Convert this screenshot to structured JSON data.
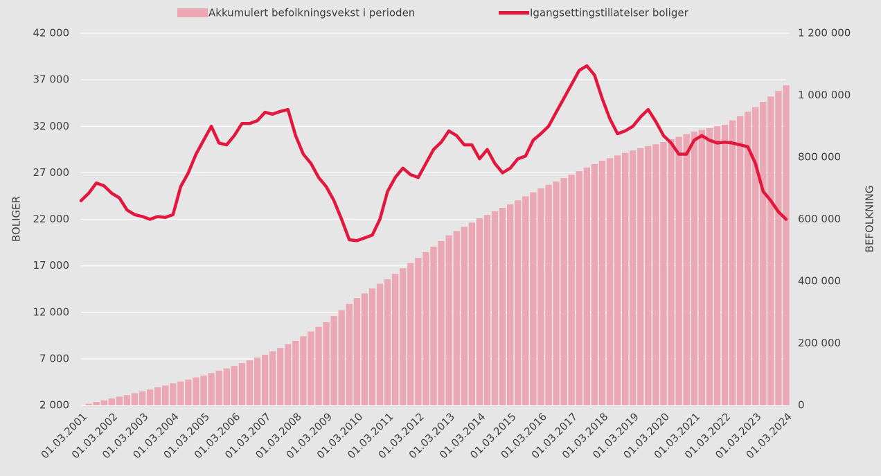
{
  "chart_data": {
    "type": "combo",
    "y_label": "BOLIGER",
    "y2_label": "BEFOLKNING",
    "categories": [
      "01.03.2001",
      null,
      null,
      null,
      "01.03.2002",
      null,
      null,
      null,
      "01.03.2003",
      null,
      null,
      null,
      "01.03.2004",
      null,
      null,
      null,
      "01.03.2005",
      null,
      null,
      null,
      "01.03.2006",
      null,
      null,
      null,
      "01.03.2007",
      null,
      null,
      null,
      "01.03.2008",
      null,
      null,
      null,
      "01.03.2009",
      null,
      null,
      null,
      "01.03.2010",
      null,
      null,
      null,
      "01.03.2011",
      null,
      null,
      null,
      "01.03.2012",
      null,
      null,
      null,
      "01.03.2013",
      null,
      null,
      null,
      "01.03.2014",
      null,
      null,
      null,
      "01.03.2015",
      null,
      null,
      null,
      "01.03.2016",
      null,
      null,
      null,
      "01.03.2017",
      null,
      null,
      null,
      "01.03.2018",
      null,
      null,
      null,
      "01.03.2019",
      null,
      null,
      null,
      "01.03.2020",
      null,
      null,
      null,
      "01.03.2021",
      null,
      null,
      null,
      "01.03.2022",
      null,
      null,
      null,
      "01.03.2023",
      null,
      null,
      null,
      "01.03.2024"
    ],
    "series": [
      {
        "name": "Akkumulert befolkningsvekst i perioden",
        "type": "bar",
        "axis": "y2",
        "color": "#eba7b3",
        "values": [
          0,
          5000,
          11000,
          16000,
          22000,
          28000,
          33000,
          39000,
          45000,
          51000,
          58000,
          64000,
          71000,
          77000,
          83000,
          90000,
          96000,
          104000,
          112000,
          119000,
          127000,
          136000,
          145000,
          154000,
          163000,
          174000,
          185000,
          197000,
          208000,
          223000,
          238000,
          253000,
          268000,
          288000,
          307000,
          327000,
          346000,
          361000,
          377000,
          392000,
          407000,
          424000,
          442000,
          459000,
          476000,
          494000,
          512000,
          530000,
          548000,
          562000,
          576000,
          589000,
          603000,
          614000,
          626000,
          637000,
          648000,
          661000,
          674000,
          687000,
          700000,
          711000,
          722000,
          733000,
          744000,
          755000,
          767000,
          778000,
          789000,
          797000,
          806000,
          814000,
          822000,
          829000,
          836000,
          842000,
          849000,
          858000,
          866000,
          875000,
          883000,
          889000,
          894000,
          900000,
          905000,
          919000,
          933000,
          947000,
          961000,
          979000,
          996000,
          1014000,
          1032000
        ]
      },
      {
        "name": "Igangsettingstillatelser boliger",
        "type": "line",
        "color": "#e3173e",
        "values": [
          24000,
          24800,
          25900,
          25600,
          24800,
          24300,
          23000,
          22500,
          22300,
          22000,
          22300,
          22200,
          22500,
          25500,
          27000,
          29000,
          30500,
          32000,
          30200,
          30000,
          31000,
          32300,
          32300,
          32600,
          33500,
          33300,
          33600,
          33800,
          31000,
          29000,
          28000,
          26500,
          25500,
          24000,
          22000,
          19800,
          19700,
          20000,
          20300,
          22000,
          25000,
          26500,
          27500,
          26800,
          26500,
          28000,
          29500,
          30300,
          31500,
          31000,
          30000,
          30000,
          28500,
          29500,
          28000,
          27000,
          27500,
          28500,
          28800,
          30500,
          31200,
          32000,
          33500,
          35000,
          36500,
          38000,
          38500,
          37500,
          35000,
          32800,
          31200,
          31500,
          32000,
          33000,
          33800,
          32500,
          31000,
          30200,
          29000,
          29000,
          30500,
          31000,
          30500,
          30200,
          30300,
          30200,
          30000,
          29800,
          28000,
          25000,
          24000,
          22800,
          22000
        ]
      }
    ],
    "ylim": [
      2000,
      42000
    ],
    "yticks": [
      {
        "value": 2000,
        "label": "2 000"
      },
      {
        "value": 7000,
        "label": "7 000"
      },
      {
        "value": 12000,
        "label": "12 000"
      },
      {
        "value": 17000,
        "label": "17 000"
      },
      {
        "value": 22000,
        "label": "22 000"
      },
      {
        "value": 27000,
        "label": "27 000"
      },
      {
        "value": 32000,
        "label": "32 000"
      },
      {
        "value": 37000,
        "label": "37 000"
      },
      {
        "value": 42000,
        "label": "42 000"
      }
    ],
    "y2lim": [
      0,
      1200000
    ],
    "y2ticks": [
      0,
      {
        "value": 200000,
        "label": "200 000"
      },
      {
        "value": 400000,
        "label": "400 000"
      },
      {
        "value": 600000,
        "label": "600 000"
      },
      {
        "value": 800000,
        "label": "800 000"
      },
      {
        "value": 1000000,
        "label": "1 000 000"
      },
      {
        "value": 1200000,
        "label": "1 200 000"
      }
    ],
    "grid": true
  }
}
